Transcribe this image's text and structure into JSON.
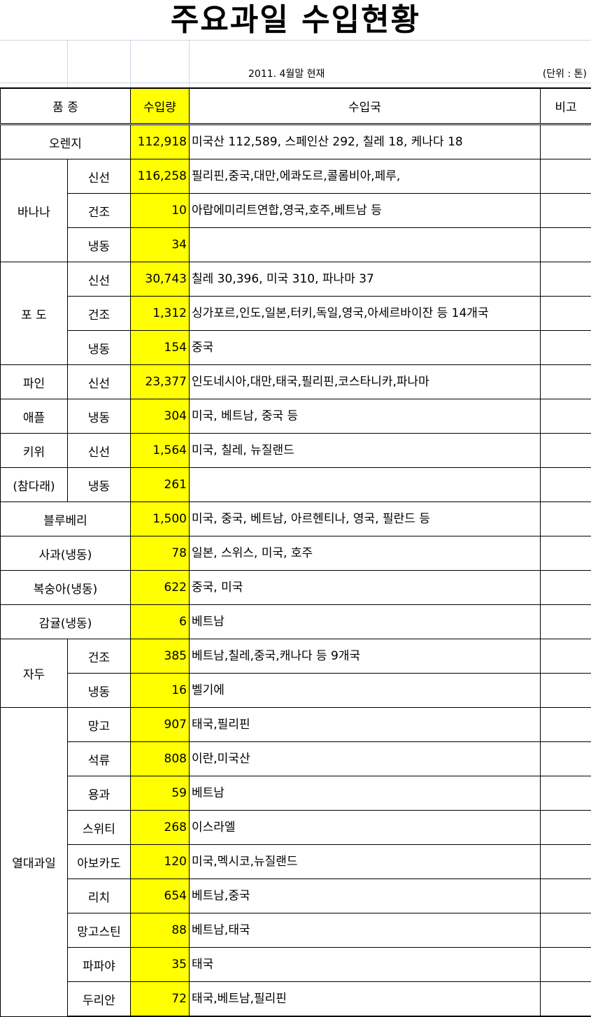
{
  "title": "주요과일 수입현황",
  "date_note": "2011. 4월말 현재",
  "unit_note": "(단위 : 톤)",
  "headers": {
    "variety": "품 종",
    "quantity": "수입량",
    "countries": "수입국",
    "remarks": "비고"
  },
  "colors": {
    "quantity_highlight": "#ffff00"
  },
  "groups": [
    {
      "name": "오렌지",
      "rows": [
        {
          "type": "",
          "qty": "112,918",
          "countries": "미국산 112,589, 스페인산 292, 칠레 18, 케나다 18"
        }
      ]
    },
    {
      "name": "바나나",
      "rows": [
        {
          "type": "신선",
          "qty": "116,258",
          "countries": "필리핀,중국,대만,에콰도르,콜롬비아,페루,"
        },
        {
          "type": "건조",
          "qty": "10",
          "countries": "아랍에미리트연합,영국,호주,베트남 등"
        },
        {
          "type": "냉동",
          "qty": "34",
          "countries": ""
        }
      ]
    },
    {
      "name": "포 도",
      "rows": [
        {
          "type": "신선",
          "qty": "30,743",
          "countries": "칠레 30,396, 미국 310, 파나마 37"
        },
        {
          "type": "건조",
          "qty": "1,312",
          "countries": "싱가포르,인도,일본,터키,독일,영국,아세르바이잔  등 14개국"
        },
        {
          "type": "냉동",
          "qty": "154",
          "countries": "중국"
        }
      ]
    },
    {
      "name": "파인",
      "rows": [
        {
          "type": "신선",
          "qty": "23,377",
          "countries": "인도네시아,대만,태국,필리핀,코스타니카,파나마"
        }
      ]
    },
    {
      "name": "애플",
      "rows": [
        {
          "type": "냉동",
          "qty": "304",
          "countries": "미국, 베트남, 중국 등"
        }
      ]
    },
    {
      "name": "키위",
      "rows": [
        {
          "type": "신선",
          "qty": "1,564",
          "countries": "미국, 칠레, 뉴질랜드"
        }
      ]
    },
    {
      "name": "(참다래)",
      "rows": [
        {
          "type": "냉동",
          "qty": "261",
          "countries": ""
        }
      ]
    },
    {
      "name": "블루베리",
      "rows": [
        {
          "type": "",
          "qty": "1,500",
          "countries": "미국, 중국, 베트남, 아르헨티나, 영국, 필란드 등"
        }
      ]
    },
    {
      "name": "사과(냉동)",
      "rows": [
        {
          "type": "",
          "qty": "78",
          "countries": "일본, 스위스, 미국, 호주"
        }
      ]
    },
    {
      "name": "복숭아(냉동)",
      "rows": [
        {
          "type": "",
          "qty": "622",
          "countries": "중국, 미국"
        }
      ]
    },
    {
      "name": "감귤(냉동)",
      "rows": [
        {
          "type": "",
          "qty": "6",
          "countries": "베트남"
        }
      ]
    },
    {
      "name": "자두",
      "rows": [
        {
          "type": "건조",
          "qty": "385",
          "countries": "베트남,칠레,중국,캐나다 등 9개국"
        },
        {
          "type": "냉동",
          "qty": "16",
          "countries": "벨기에"
        }
      ]
    },
    {
      "name": "열대과일",
      "rows": [
        {
          "type": "망고",
          "qty": "907",
          "countries": "태국,필리핀"
        },
        {
          "type": "석류",
          "qty": "808",
          "countries": "이란,미국산"
        },
        {
          "type": "용과",
          "qty": "59",
          "countries": "베트남"
        },
        {
          "type": "스위티",
          "qty": "268",
          "countries": "이스라엘"
        },
        {
          "type": "아보카도",
          "qty": "120",
          "countries": "미국,멕시코,뉴질랜드"
        },
        {
          "type": "리치",
          "qty": "654",
          "countries": "베트남,중국"
        },
        {
          "type": "망고스틴",
          "qty": "88",
          "countries": "베트남,태국"
        },
        {
          "type": "파파야",
          "qty": "35",
          "countries": "태국"
        },
        {
          "type": "두리안",
          "qty": "72",
          "countries": "태국,베트남,필리핀"
        }
      ]
    }
  ]
}
